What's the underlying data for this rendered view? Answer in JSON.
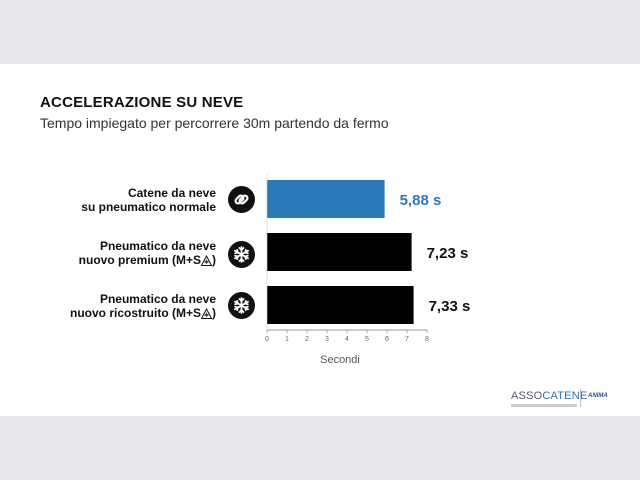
{
  "slide": {
    "title": "ACCELERAZIONE SU NEVE",
    "subtitle": "Tempo impiegato per percorrere 30m partendo da fermo"
  },
  "colors": {
    "highlight": "#2a7ab8",
    "default_bar": "#000000",
    "highlight_label": "#2a7ab8",
    "default_label": "#111111"
  },
  "chart_data": {
    "type": "bar",
    "orientation": "horizontal",
    "categories": [
      "Catene da neve su pneumatico normale",
      "Pneumatico da neve nuovo premium (M+S)",
      "Pneumatico da neve nuovo ricostruito (M+S)"
    ],
    "values": [
      5.88,
      7.23,
      7.33
    ],
    "value_labels": [
      "5,88 s",
      "7,23 s",
      "7,33 s"
    ],
    "highlight_index": 0,
    "xlabel": "Secondi",
    "xlim": [
      0,
      8
    ],
    "xticks": [
      "0",
      "1",
      "2",
      "3",
      "4",
      "5",
      "6",
      "7",
      "8"
    ],
    "grid": false,
    "legend": "none"
  },
  "rows": [
    {
      "line1": "Catene da neve",
      "line2": "su pneumatico normale",
      "ms": false,
      "icon": "chain-link-icon"
    },
    {
      "line1": "Pneumatico da neve",
      "line2": "nuovo premium (M+S",
      "ms": true,
      "close": ")",
      "icon": "snowflake-icon"
    },
    {
      "line1": "Pneumatico da neve",
      "line2": "nuovo ricostruito (M+S",
      "ms": true,
      "close": ")",
      "icon": "snowflake-icon"
    }
  ],
  "logo": {
    "brand_prefix": "ASSO",
    "brand_suffix": "CATENE",
    "partner": "ANIMA"
  }
}
